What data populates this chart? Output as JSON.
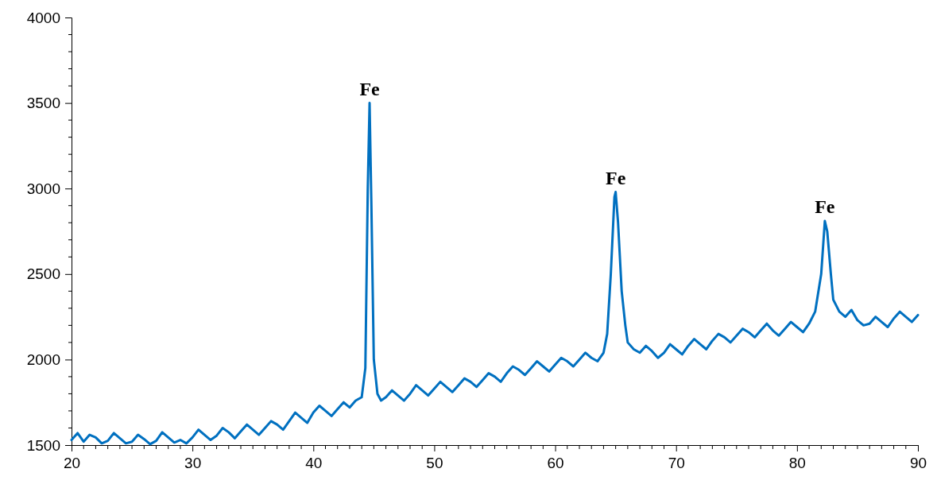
{
  "chart_data": {
    "type": "line",
    "xlim": [
      20,
      90
    ],
    "ylim": [
      1500,
      4000
    ],
    "xticks": [
      20,
      30,
      40,
      50,
      60,
      70,
      80,
      90
    ],
    "yticks": [
      1500,
      2000,
      2500,
      3000,
      3500,
      4000
    ],
    "grid": false,
    "marker": "none",
    "line_style": "solid",
    "annotations": [
      {
        "text": "Fe",
        "x": 44.65,
        "y": 3500
      },
      {
        "text": "Fe",
        "x": 65,
        "y": 2980
      },
      {
        "text": "Fe",
        "x": 82.3,
        "y": 2810
      }
    ],
    "series": [
      {
        "color": "#0070c0",
        "x": [
          20,
          20.5,
          21,
          21.5,
          22,
          22.5,
          23,
          23.5,
          24,
          24.5,
          25,
          25.5,
          26,
          26.5,
          27,
          27.5,
          28,
          28.5,
          29,
          29.5,
          30,
          30.5,
          31,
          31.5,
          32,
          32.5,
          33,
          33.5,
          34,
          34.5,
          35,
          35.5,
          36,
          36.5,
          37,
          37.5,
          38,
          38.5,
          39,
          39.5,
          40,
          40.5,
          41,
          41.5,
          42,
          42.5,
          43,
          43.5,
          44,
          44.3,
          44.5,
          44.65,
          44.8,
          45,
          45.3,
          45.6,
          46,
          46.5,
          47,
          47.5,
          48,
          48.5,
          49,
          49.5,
          50,
          50.5,
          51,
          51.5,
          52,
          52.5,
          53,
          53.5,
          54,
          54.5,
          55,
          55.5,
          56,
          56.5,
          57,
          57.5,
          58,
          58.5,
          59,
          59.5,
          60,
          60.5,
          61,
          61.5,
          62,
          62.5,
          63,
          63.5,
          64,
          64.3,
          64.6,
          64.9,
          65,
          65.2,
          65.5,
          65.8,
          66,
          66.5,
          67,
          67.5,
          68,
          68.5,
          69,
          69.5,
          70,
          70.5,
          71,
          71.5,
          72,
          72.5,
          73,
          73.5,
          74,
          74.5,
          75,
          75.5,
          76,
          76.5,
          77,
          77.5,
          78,
          78.5,
          79,
          79.5,
          80,
          80.5,
          81,
          81.5,
          82,
          82.3,
          82.5,
          82.8,
          83,
          83.5,
          84,
          84.5,
          85,
          85.5,
          86,
          86.5,
          87,
          87.5,
          88,
          88.5,
          89,
          89.5,
          90
        ],
        "values": [
          1530,
          1570,
          1520,
          1560,
          1545,
          1510,
          1525,
          1570,
          1540,
          1510,
          1520,
          1560,
          1535,
          1505,
          1525,
          1575,
          1545,
          1515,
          1530,
          1510,
          1545,
          1590,
          1560,
          1530,
          1555,
          1600,
          1575,
          1540,
          1580,
          1620,
          1590,
          1560,
          1600,
          1640,
          1620,
          1590,
          1640,
          1690,
          1660,
          1630,
          1690,
          1730,
          1700,
          1670,
          1710,
          1750,
          1720,
          1760,
          1780,
          1950,
          3000,
          3500,
          2900,
          2000,
          1800,
          1760,
          1780,
          1820,
          1790,
          1760,
          1800,
          1850,
          1820,
          1790,
          1830,
          1870,
          1840,
          1810,
          1850,
          1890,
          1870,
          1840,
          1880,
          1920,
          1900,
          1870,
          1920,
          1960,
          1940,
          1910,
          1950,
          1990,
          1960,
          1930,
          1970,
          2010,
          1990,
          1960,
          2000,
          2040,
          2010,
          1990,
          2040,
          2150,
          2500,
          2950,
          2980,
          2800,
          2400,
          2200,
          2100,
          2060,
          2040,
          2080,
          2050,
          2010,
          2040,
          2090,
          2060,
          2030,
          2080,
          2120,
          2090,
          2060,
          2110,
          2150,
          2130,
          2100,
          2140,
          2180,
          2160,
          2130,
          2170,
          2210,
          2170,
          2140,
          2180,
          2220,
          2190,
          2160,
          2210,
          2280,
          2500,
          2810,
          2750,
          2500,
          2350,
          2280,
          2250,
          2290,
          2230,
          2200,
          2210,
          2250,
          2220,
          2190,
          2240,
          2280,
          2250,
          2220,
          2260
        ]
      }
    ]
  }
}
